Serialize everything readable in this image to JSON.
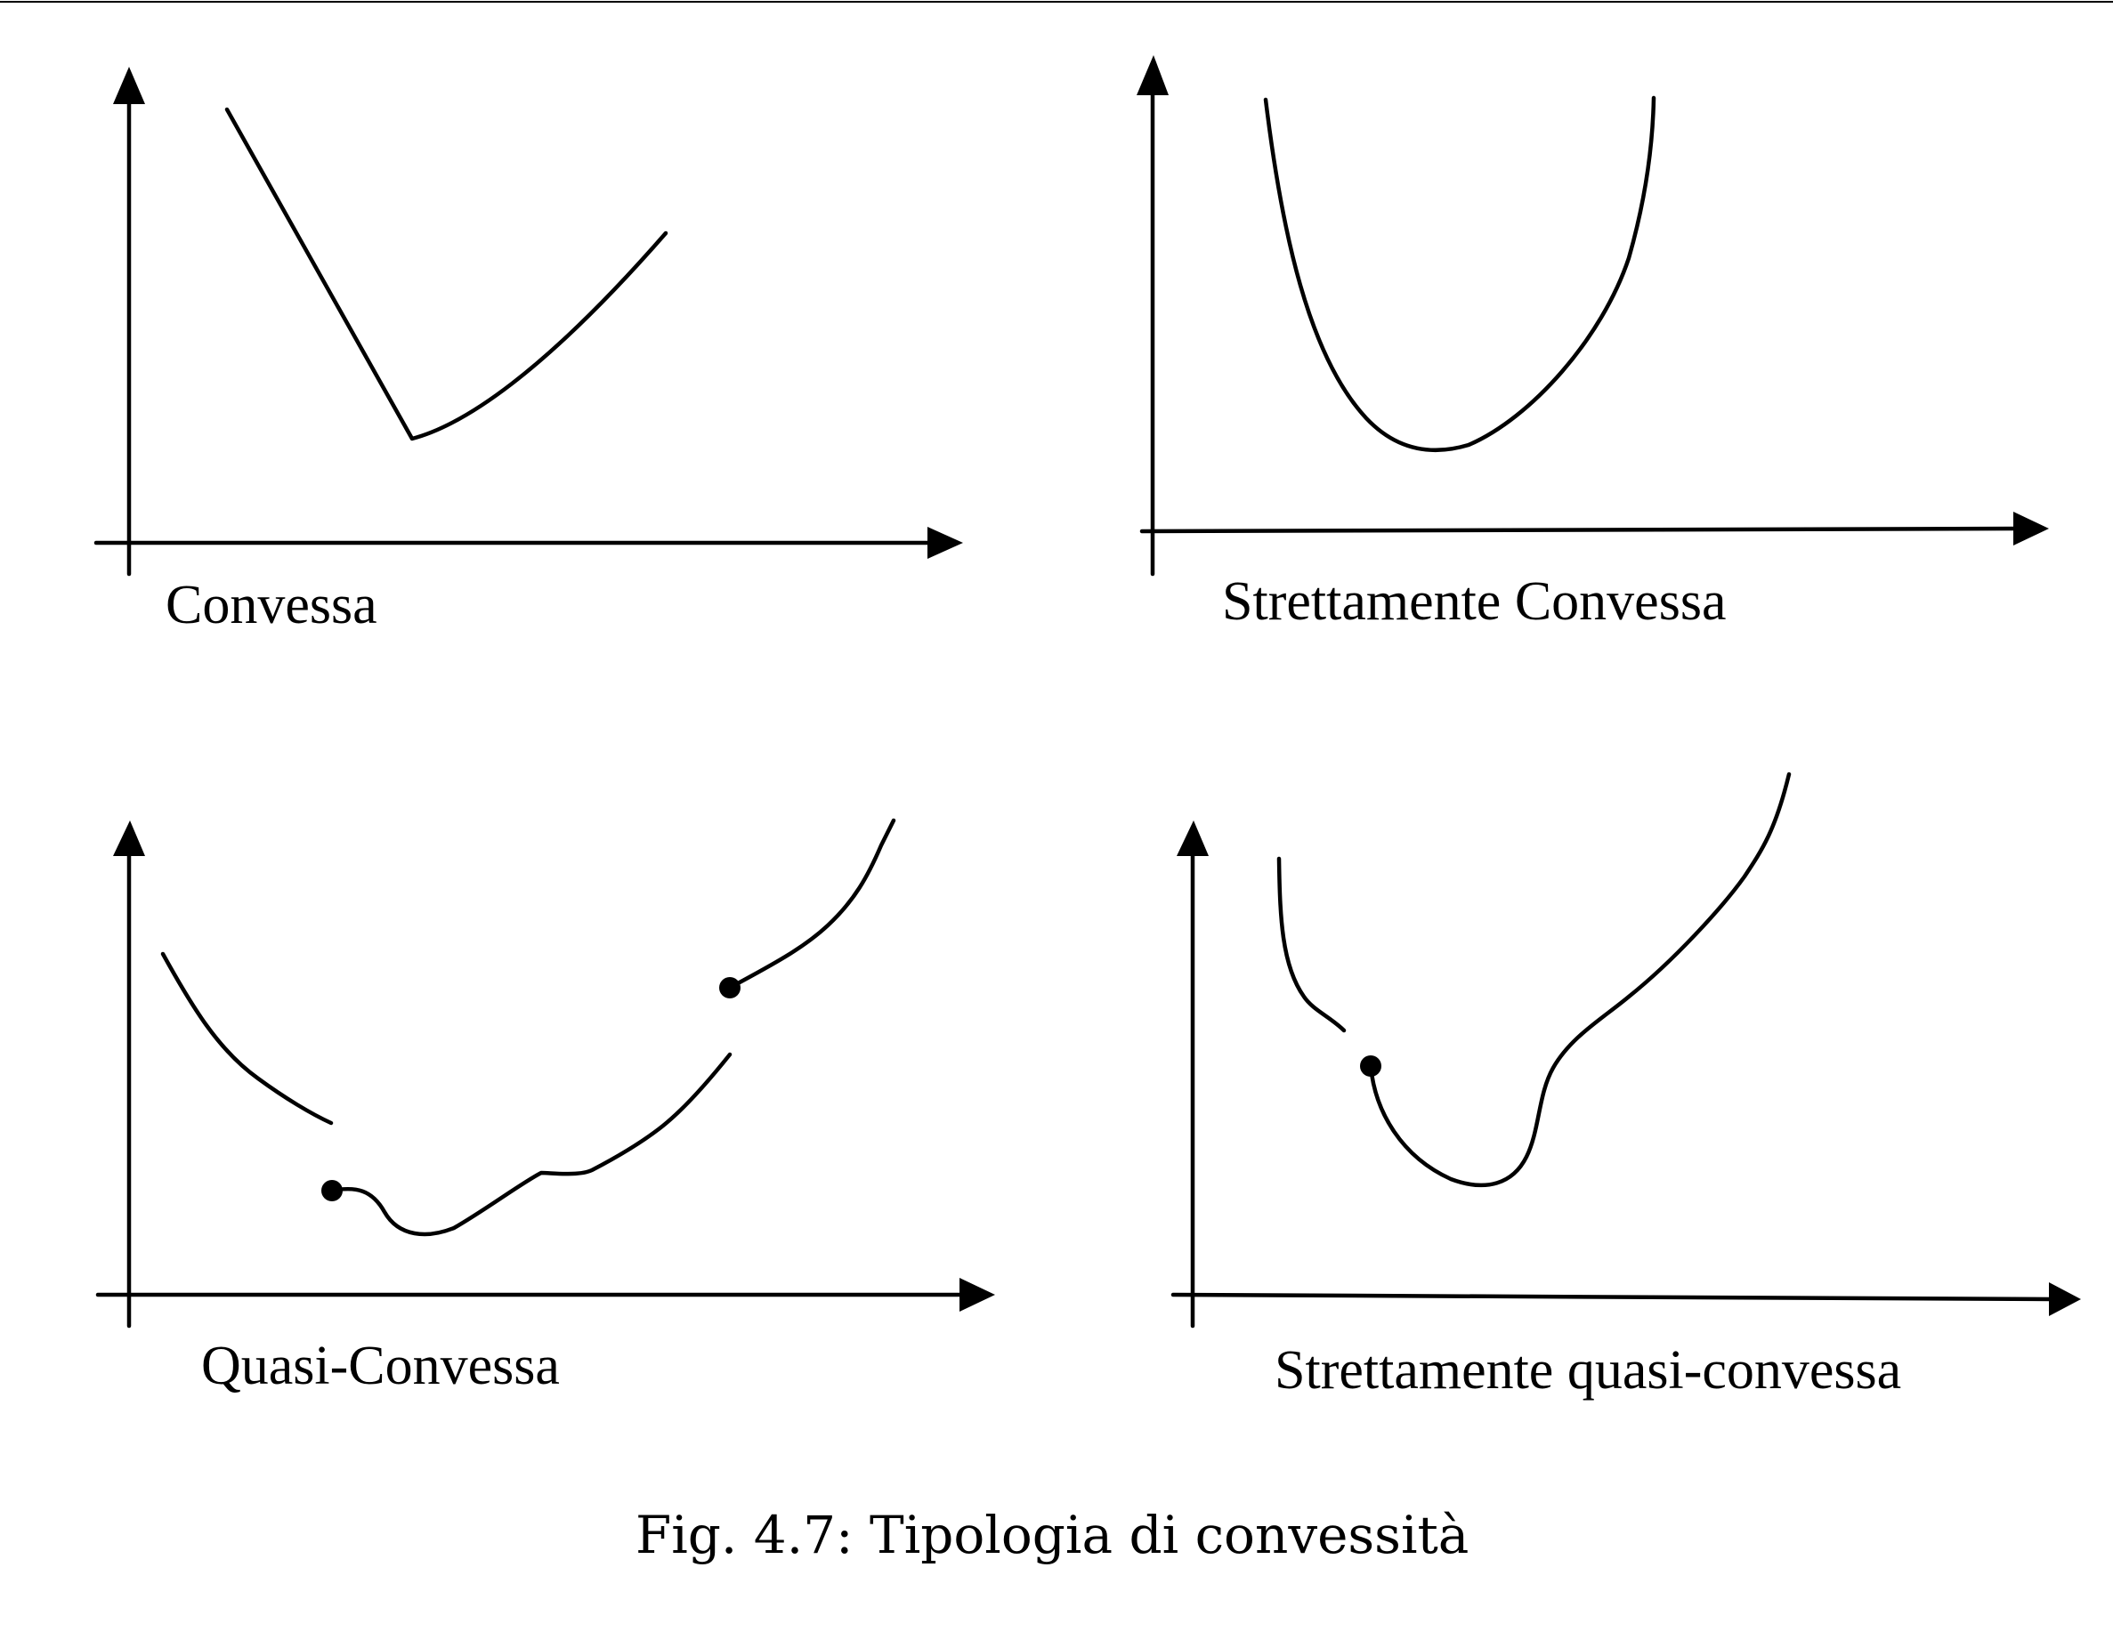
{
  "figure": {
    "caption": "Fig. 4.7: Tipologia di convessità",
    "panels": [
      {
        "id": "convessa",
        "label": "Convessa"
      },
      {
        "id": "strettamente-convessa",
        "label": "Strettamente Convessa"
      },
      {
        "id": "quasi-convessa",
        "label": "Quasi-Convessa"
      },
      {
        "id": "strettamente-quasi-convessa",
        "label": "Strettamente quasi-convessa"
      }
    ]
  }
}
